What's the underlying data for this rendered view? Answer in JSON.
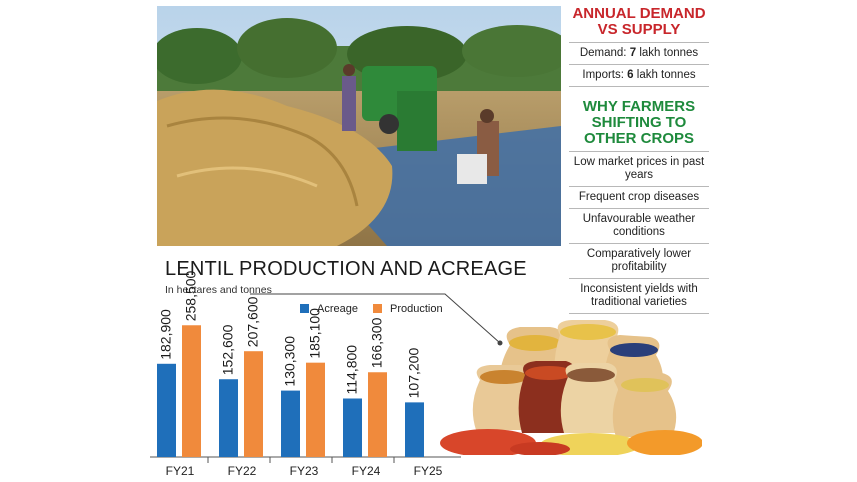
{
  "colors": {
    "acreage": "#1f6fba",
    "production": "#f08a3c",
    "demand_heading": "#c8262b",
    "reasons_heading": "#1e8a3c"
  },
  "sidebar": {
    "demand_heading": "ANNUAL DEMAND VS SUPPLY",
    "demand_label": "Demand:",
    "demand_value": "7",
    "demand_unit": "lakh tonnes",
    "imports_label": "Imports:",
    "imports_value": "6",
    "imports_unit": "lakh tonnes",
    "reasons_heading": "WHY FARMERS SHIFTING TO OTHER CROPS",
    "reasons": [
      "Low market prices in past years",
      "Frequent crop diseases",
      "Unfavourable weather conditions",
      "Comparatively lower profitability",
      "Inconsistent yields with traditional varieties"
    ]
  },
  "chart_data": {
    "type": "bar",
    "title": "LENTIL PRODUCTION AND ACREAGE",
    "subtitle": "In hectares and tonnes",
    "categories": [
      "FY21",
      "FY22",
      "FY23",
      "FY24",
      "FY25"
    ],
    "series": [
      {
        "name": "Acreage",
        "values": [
          182900,
          152600,
          130300,
          114800,
          107200
        ],
        "labels": [
          "182,900",
          "152,600",
          "130,300",
          "114,800",
          "107,200"
        ]
      },
      {
        "name": "Production",
        "values": [
          258500,
          207600,
          185100,
          166300,
          null
        ],
        "labels": [
          "258,500",
          "207,600",
          "185,100",
          "166,300",
          ""
        ]
      }
    ],
    "ylim": [
      0,
      520000
    ],
    "legend_position": "top",
    "grid": false
  }
}
